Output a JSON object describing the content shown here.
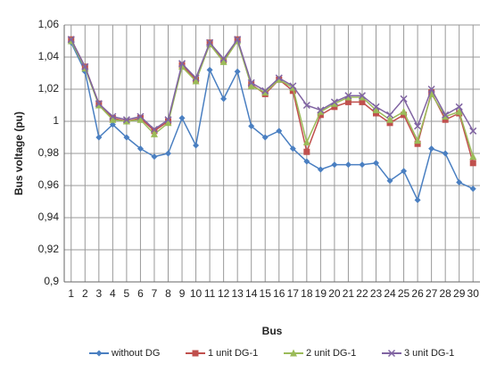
{
  "chart_data": {
    "type": "line",
    "y_label": "Bus voltage (pu)",
    "x_label": "Bus",
    "categories": [
      "1",
      "2",
      "3",
      "4",
      "5",
      "6",
      "7",
      "8",
      "9",
      "10",
      "11",
      "12",
      "13",
      "14",
      "15",
      "16",
      "17",
      "18",
      "19",
      "20",
      "21",
      "22",
      "23",
      "24",
      "25",
      "26",
      "27",
      "28",
      "29",
      "30"
    ],
    "ylim": [
      0.9,
      1.06
    ],
    "yticks": [
      {
        "value": 0.9,
        "label": "0,9"
      },
      {
        "value": 0.92,
        "label": "0,92"
      },
      {
        "value": 0.94,
        "label": "0,94"
      },
      {
        "value": 0.96,
        "label": "0,96"
      },
      {
        "value": 0.98,
        "label": "0,98"
      },
      1,
      {
        "value": 1.02,
        "label": "1,02"
      },
      {
        "value": 1.04,
        "label": "1,04"
      },
      {
        "value": 1.06,
        "label": "1,06"
      }
    ],
    "grid": true,
    "legend": "bottom",
    "series": [
      {
        "name": "without DG",
        "color": "#4a7fc1",
        "marker": "diamond",
        "values": [
          1.049,
          1.031,
          0.99,
          0.998,
          0.99,
          0.983,
          0.978,
          0.98,
          1.002,
          0.985,
          1.032,
          1.014,
          1.031,
          0.997,
          0.99,
          0.994,
          0.983,
          0.975,
          0.97,
          0.973,
          0.973,
          0.973,
          0.974,
          0.963,
          0.969,
          0.951,
          0.983,
          0.98,
          0.962,
          0.958
        ]
      },
      {
        "name": "1 unit DG-1",
        "color": "#c0504d",
        "marker": "square",
        "values": [
          1.051,
          1.034,
          1.011,
          1.002,
          1.0,
          1.002,
          0.994,
          1.0,
          1.035,
          1.026,
          1.049,
          1.038,
          1.051,
          1.023,
          1.017,
          1.026,
          1.019,
          0.981,
          1.004,
          1.009,
          1.012,
          1.012,
          1.005,
          0.999,
          1.004,
          0.986,
          1.018,
          1.001,
          1.005,
          0.974
        ]
      },
      {
        "name": "2 unit DG-1",
        "color": "#9bbb59",
        "marker": "triangle",
        "values": [
          1.05,
          1.033,
          1.01,
          1.001,
          1.0,
          1.001,
          0.992,
          0.999,
          1.034,
          1.025,
          1.048,
          1.037,
          1.05,
          1.022,
          1.018,
          1.026,
          1.021,
          0.987,
          1.006,
          1.011,
          1.015,
          1.015,
          1.007,
          1.001,
          1.006,
          0.988,
          1.017,
          1.003,
          1.006,
          0.978
        ]
      },
      {
        "name": "3 unit DG-1",
        "color": "#8064a2",
        "marker": "x",
        "values": [
          1.051,
          1.034,
          1.011,
          1.003,
          1.001,
          1.003,
          0.995,
          1.001,
          1.036,
          1.027,
          1.049,
          1.039,
          1.051,
          1.024,
          1.019,
          1.027,
          1.022,
          1.01,
          1.007,
          1.012,
          1.016,
          1.016,
          1.009,
          1.004,
          1.014,
          0.997,
          1.02,
          1.004,
          1.009,
          0.994
        ]
      }
    ]
  }
}
